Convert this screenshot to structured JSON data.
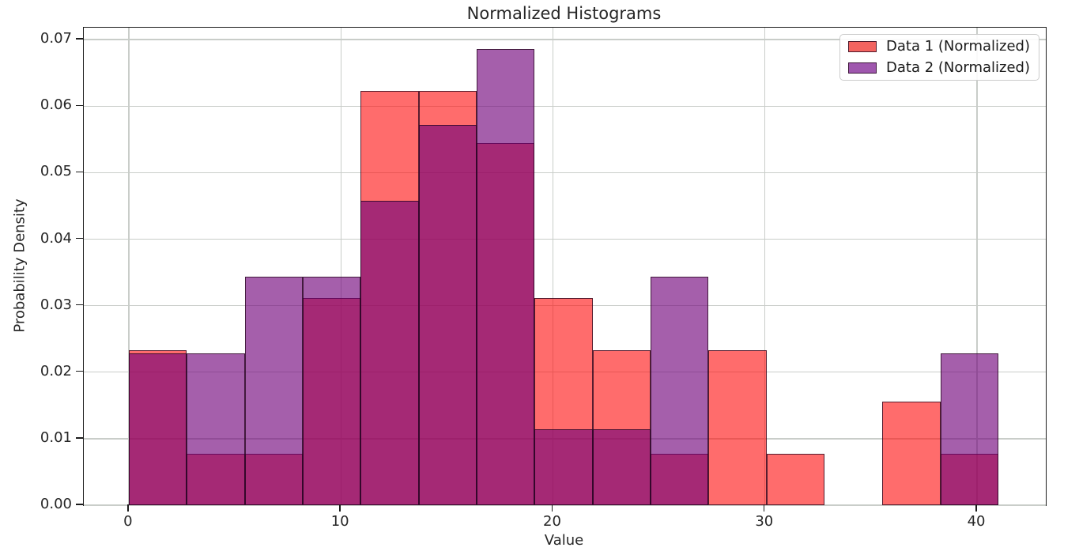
{
  "chart_data": {
    "type": "bar",
    "subtype": "overlaid-normalized-histogram",
    "title": "Normalized Histograms",
    "xlabel": "Value",
    "ylabel": "Probability Density",
    "bin_edges": [
      0,
      2.73,
      5.47,
      8.2,
      10.93,
      13.67,
      16.4,
      19.13,
      21.87,
      24.6,
      27.33,
      30.07,
      32.8,
      35.53,
      38.27,
      41.0
    ],
    "series": [
      {
        "name": "Data 1 (Normalized)",
        "fill": "rgba(255,10,10,0.60)",
        "legend_swatch": "#f26360",
        "values": [
          0.02335,
          0.00778,
          0.00778,
          0.03114,
          0.06228,
          0.06228,
          0.05449,
          0.03114,
          0.02335,
          0.00778,
          0.02335,
          0.00778,
          0,
          0.01557,
          0.00778
        ]
      },
      {
        "name": "Data 2 (Normalized)",
        "fill": "rgba(112,2,122,0.63)",
        "legend_swatch": "#9f57ae",
        "values": [
          0.02287,
          0.02287,
          0.0343,
          0.0343,
          0.04573,
          0.05716,
          0.0686,
          0.01143,
          0.01143,
          0.0343,
          0,
          0,
          0,
          0,
          0.02287
        ]
      }
    ],
    "x_ticks": [
      {
        "label": "0",
        "value": 0
      },
      {
        "label": "10",
        "value": 10
      },
      {
        "label": "20",
        "value": 20
      },
      {
        "label": "30",
        "value": 30
      },
      {
        "label": "40",
        "value": 40
      }
    ],
    "y_ticks": [
      {
        "label": "0.00",
        "value": 0.0
      },
      {
        "label": "0.01",
        "value": 0.01
      },
      {
        "label": "0.02",
        "value": 0.02
      },
      {
        "label": "0.03",
        "value": 0.03
      },
      {
        "label": "0.04",
        "value": 0.04
      },
      {
        "label": "0.05",
        "value": 0.05
      },
      {
        "label": "0.06",
        "value": 0.06
      },
      {
        "label": "0.07",
        "value": 0.07
      }
    ],
    "xlim": [
      -2.12,
      43.24
    ],
    "ylim": [
      0,
      0.0718
    ],
    "grid": true,
    "grid_color": "#c9cdc9",
    "bar_edge_color": "rgba(38,6,30,0.78)",
    "legend_position": "upper right"
  }
}
